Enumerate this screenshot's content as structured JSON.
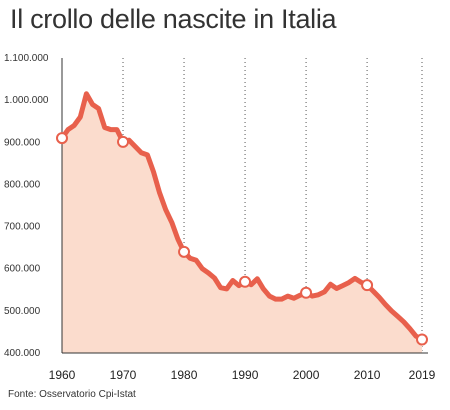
{
  "chart_data": {
    "type": "area",
    "title": "Il crollo delle nascite in Italia",
    "source": "Fonte: Osservatorio Cpi-Istat",
    "xlabel": "",
    "ylabel": "",
    "xlim": [
      1960,
      2019
    ],
    "ylim": [
      400000,
      1100000
    ],
    "x_ticks": [
      1960,
      1970,
      1980,
      1990,
      2000,
      2010,
      2019
    ],
    "x_tick_labels": [
      "1960",
      "1970",
      "1980",
      "1990",
      "2000",
      "2010",
      "2019"
    ],
    "y_ticks": [
      400000,
      500000,
      600000,
      700000,
      800000,
      900000,
      1000000,
      1100000
    ],
    "y_tick_labels": [
      "400.000",
      "500.000",
      "600.000",
      "700.000",
      "800.000",
      "900.000",
      "1.000.000",
      "1.100.000"
    ],
    "grid": "vertical dotted",
    "series": [
      {
        "x": [
          1960,
          1961,
          1962,
          1963,
          1964,
          1965,
          1966,
          1967,
          1968,
          1969,
          1970,
          1971,
          1972,
          1973,
          1974,
          1975,
          1976,
          1977,
          1978,
          1979,
          1980,
          1981,
          1982,
          1983,
          1984,
          1985,
          1986,
          1987,
          1988,
          1989,
          1990,
          1991,
          1992,
          1993,
          1994,
          1995,
          1996,
          1997,
          1998,
          1999,
          2000,
          2001,
          2002,
          2003,
          2004,
          2005,
          2006,
          2007,
          2008,
          2009,
          2010,
          2011,
          2012,
          2013,
          2014,
          2015,
          2016,
          2017,
          2018,
          2019
        ],
        "values": [
          910000,
          930000,
          940000,
          960000,
          1015000,
          990000,
          980000,
          935000,
          930000,
          930000,
          901000,
          905000,
          890000,
          875000,
          870000,
          830000,
          780000,
          740000,
          710000,
          670000,
          640000,
          625000,
          620000,
          600000,
          590000,
          578000,
          555000,
          552000,
          572000,
          560000,
          569000,
          562000,
          576000,
          552000,
          535000,
          528000,
          528000,
          535000,
          530000,
          537000,
          543000,
          535000,
          538000,
          545000,
          563000,
          553000,
          560000,
          567000,
          577000,
          568000,
          561000,
          547000,
          532000,
          515000,
          500000,
          487000,
          474000,
          458000,
          440000,
          432000
        ],
        "markers": [
          {
            "x": 1960,
            "y": 910000
          },
          {
            "x": 1970,
            "y": 901000
          },
          {
            "x": 1980,
            "y": 640000
          },
          {
            "x": 1990,
            "y": 569000
          },
          {
            "x": 2000,
            "y": 543000
          },
          {
            "x": 2010,
            "y": 561000
          },
          {
            "x": 2019,
            "y": 432000
          }
        ],
        "line_color": "#e8604c",
        "fill_color": "#fbdccd"
      }
    ]
  }
}
